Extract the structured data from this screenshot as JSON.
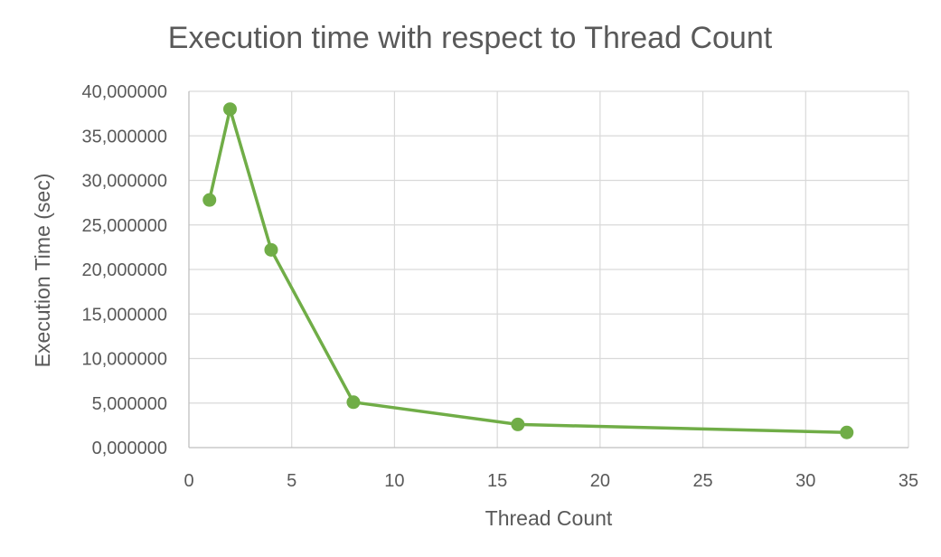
{
  "chart_data": {
    "type": "scatter",
    "title": "Execution time with respect to Thread Count",
    "xlabel": "Thread Count",
    "ylabel": "Execution Time (sec)",
    "xlim": [
      0,
      35
    ],
    "ylim": [
      0,
      40
    ],
    "x_ticks": [
      0,
      5,
      10,
      15,
      20,
      25,
      30,
      35
    ],
    "x_tick_labels": [
      "0",
      "5",
      "10",
      "15",
      "20",
      "25",
      "30",
      "35"
    ],
    "y_ticks": [
      0,
      5,
      10,
      15,
      20,
      25,
      30,
      35,
      40
    ],
    "y_tick_labels": [
      "0,000000",
      "5,000000",
      "10,000000",
      "15,000000",
      "20,000000",
      "25,000000",
      "30,000000",
      "35,000000",
      "40,000000"
    ],
    "grid": true,
    "legend": "none",
    "series": [
      {
        "color": "#70ad47",
        "x": [
          1,
          2,
          4,
          8,
          16,
          32
        ],
        "y": [
          27.8,
          38.0,
          22.2,
          5.1,
          2.6,
          1.7
        ]
      }
    ]
  }
}
